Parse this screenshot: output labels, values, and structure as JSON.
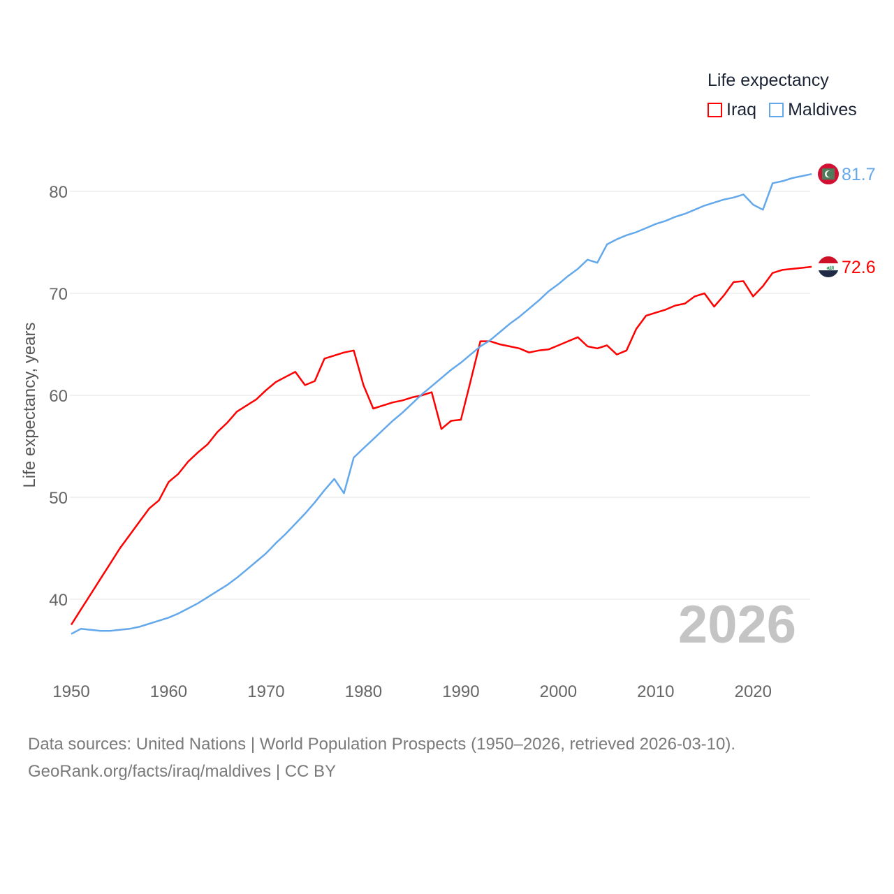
{
  "chart_data": {
    "type": "line",
    "title": "Life expectancy",
    "xlabel": "",
    "ylabel": "Life expectancy, years",
    "xlim": [
      1950,
      2026
    ],
    "ylim": [
      34,
      86
    ],
    "x_ticks": [
      "1950",
      "1960",
      "1970",
      "1980",
      "1990",
      "2000",
      "2010",
      "2020"
    ],
    "y_ticks": [
      "40",
      "50",
      "60",
      "70",
      "80"
    ],
    "grid": true,
    "legend_position": "top-right",
    "year_label": "2026",
    "x": [
      1950,
      1951,
      1952,
      1953,
      1954,
      1955,
      1956,
      1957,
      1958,
      1959,
      1960,
      1961,
      1962,
      1963,
      1964,
      1965,
      1966,
      1967,
      1968,
      1969,
      1970,
      1971,
      1972,
      1973,
      1974,
      1975,
      1976,
      1977,
      1978,
      1979,
      1980,
      1981,
      1982,
      1983,
      1984,
      1985,
      1986,
      1987,
      1988,
      1989,
      1990,
      1991,
      1992,
      1993,
      1994,
      1995,
      1996,
      1997,
      1998,
      1999,
      2000,
      2001,
      2002,
      2003,
      2004,
      2005,
      2006,
      2007,
      2008,
      2009,
      2010,
      2011,
      2012,
      2013,
      2014,
      2015,
      2016,
      2017,
      2018,
      2019,
      2020,
      2021,
      2022,
      2023,
      2024,
      2025,
      2026
    ],
    "series": [
      {
        "name": "Iraq",
        "color": "#ff0000",
        "end_label": "72.6",
        "values": [
          37.5,
          39.0,
          40.5,
          42.0,
          43.5,
          45.0,
          46.3,
          47.6,
          48.9,
          49.7,
          51.5,
          52.3,
          53.5,
          54.4,
          55.2,
          56.4,
          57.3,
          58.4,
          59.0,
          59.6,
          60.5,
          61.3,
          61.8,
          62.3,
          61.0,
          61.4,
          63.6,
          63.9,
          64.2,
          64.4,
          61.0,
          58.7,
          59.0,
          59.3,
          59.5,
          59.8,
          60.0,
          60.3,
          56.7,
          57.5,
          57.6,
          61.4,
          65.3,
          65.3,
          65.0,
          64.8,
          64.6,
          64.2,
          64.4,
          64.5,
          64.9,
          65.3,
          65.7,
          64.8,
          64.6,
          64.9,
          64.0,
          64.4,
          66.5,
          67.8,
          68.1,
          68.4,
          68.8,
          69.0,
          69.7,
          70.0,
          68.7,
          69.8,
          71.1,
          71.2,
          69.7,
          70.7,
          72.0,
          72.3,
          72.4,
          72.5,
          72.6
        ]
      },
      {
        "name": "Maldives",
        "color": "#64a8ec",
        "end_label": "81.7",
        "values": [
          36.6,
          37.1,
          37.0,
          36.9,
          36.9,
          37.0,
          37.1,
          37.3,
          37.6,
          37.9,
          38.2,
          38.6,
          39.1,
          39.6,
          40.2,
          40.8,
          41.4,
          42.1,
          42.9,
          43.7,
          44.5,
          45.5,
          46.4,
          47.4,
          48.4,
          49.5,
          50.7,
          51.8,
          50.4,
          53.9,
          54.8,
          55.7,
          56.6,
          57.5,
          58.3,
          59.2,
          60.1,
          60.9,
          61.7,
          62.5,
          63.2,
          64.0,
          64.8,
          65.4,
          66.2,
          67.0,
          67.7,
          68.5,
          69.3,
          70.2,
          70.9,
          71.7,
          72.4,
          73.3,
          73.0,
          74.8,
          75.3,
          75.7,
          76.0,
          76.4,
          76.8,
          77.1,
          77.5,
          77.8,
          78.2,
          78.6,
          78.9,
          79.2,
          79.4,
          79.7,
          78.7,
          78.2,
          80.8,
          81.0,
          81.3,
          81.5,
          81.7
        ]
      }
    ]
  },
  "source": {
    "line1": "Data sources: United Nations | World Population Prospects (1950–2026, retrieved 2026-03-10).",
    "line2": "GeoRank.org/facts/iraq/maldives | CC BY"
  }
}
